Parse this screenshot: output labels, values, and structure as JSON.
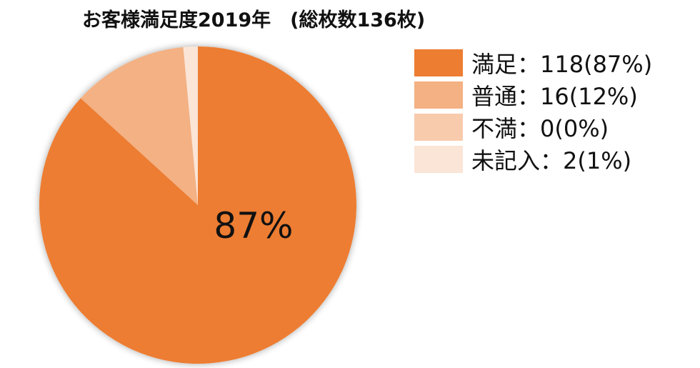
{
  "chart_data": {
    "type": "pie",
    "title": "お客様満足度2019年　(総枚数136枚)",
    "slices": [
      {
        "label": "満足",
        "count": 118,
        "percent": 87,
        "color": "#ED7D31",
        "legend_text": "満足：118(87%)"
      },
      {
        "label": "普通",
        "count": 16,
        "percent": 12,
        "color": "#F4B183",
        "legend_text": "普通：16(12%)"
      },
      {
        "label": "不満",
        "count": 0,
        "percent": 0,
        "color": "#F8CBAD",
        "legend_text": "不満：0(0%)"
      },
      {
        "label": "未記入",
        "count": 2,
        "percent": 1,
        "color": "#FBE5D6",
        "legend_text": "未記入：2(1%)"
      }
    ],
    "data_labels": [
      "87%"
    ],
    "legend_position": "right"
  }
}
